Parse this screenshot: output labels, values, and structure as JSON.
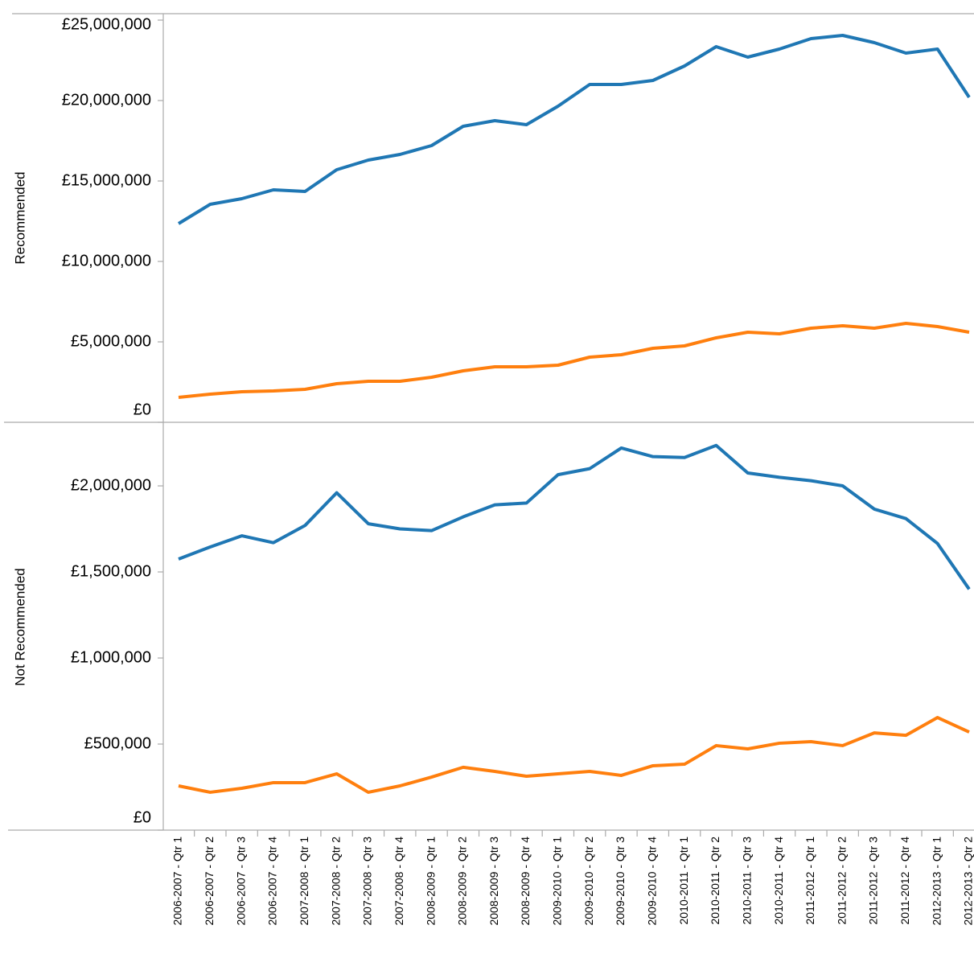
{
  "chart_data": [
    {
      "type": "line",
      "y_label": "Recommended",
      "ylim": [
        0,
        25400000
      ],
      "yticks": [
        {
          "value": 0,
          "label": "£0"
        },
        {
          "value": 5000000,
          "label": "£5,000,000"
        },
        {
          "value": 10000000,
          "label": "£10,000,000"
        },
        {
          "value": 15000000,
          "label": "£15,000,000"
        },
        {
          "value": 20000000,
          "label": "£20,000,000"
        },
        {
          "value": 25000000,
          "label": "£25,000,000"
        }
      ],
      "series": [
        {
          "color": "#1f77b4",
          "values": [
            12350000,
            13550000,
            13900000,
            14450000,
            14350000,
            15700000,
            16300000,
            16650000,
            17200000,
            18400000,
            18750000,
            18500000,
            19650000,
            21000000,
            21000000,
            21250000,
            22150000,
            23350000,
            22700000,
            23200000,
            23850000,
            24050000,
            23600000,
            22950000,
            23200000,
            20200000
          ]
        },
        {
          "color": "#ff7f0e",
          "values": [
            1550000,
            1750000,
            1900000,
            1950000,
            2050000,
            2400000,
            2550000,
            2550000,
            2800000,
            3200000,
            3450000,
            3450000,
            3550000,
            4050000,
            4200000,
            4600000,
            4750000,
            5250000,
            5600000,
            5500000,
            5850000,
            6000000,
            5850000,
            6150000,
            5950000,
            5600000
          ]
        }
      ]
    },
    {
      "type": "line",
      "y_label": "Not Recommended",
      "categories": [
        "2006-2007 - Qtr 1",
        "2006-2007 - Qtr 2",
        "2006-2007 - Qtr 3",
        "2006-2007 - Qtr 4",
        "2007-2008 - Qtr 1",
        "2007-2008 - Qtr 2",
        "2007-2008 - Qtr 3",
        "2007-2008 - Qtr 4",
        "2008-2009 - Qtr 1",
        "2008-2009 - Qtr 2",
        "2008-2009 - Qtr 3",
        "2008-2009 - Qtr 4",
        "2009-2010 - Qtr 1",
        "2009-2010 - Qtr 2",
        "2009-2010 - Qtr 3",
        "2009-2010 - Qtr 4",
        "2010-2011 - Qtr 1",
        "2010-2011 - Qtr 2",
        "2010-2011 - Qtr 3",
        "2010-2011 - Qtr 4",
        "2011-2012 - Qtr 1",
        "2011-2012 - Qtr 2",
        "2011-2012 - Qtr 3",
        "2011-2012 - Qtr 4",
        "2012-2013 - Qtr 1",
        "2012-2013 - Qtr 2"
      ],
      "ylim": [
        0,
        2360000
      ],
      "yticks": [
        {
          "value": 0,
          "label": "£0"
        },
        {
          "value": 500000,
          "label": "£500,000"
        },
        {
          "value": 1000000,
          "label": "£1,000,000"
        },
        {
          "value": 1500000,
          "label": "£1,500,000"
        },
        {
          "value": 2000000,
          "label": "£2,000,000"
        }
      ],
      "series": [
        {
          "color": "#1f77b4",
          "values": [
            1575000,
            1645000,
            1710000,
            1670000,
            1770000,
            1960000,
            1780000,
            1750000,
            1740000,
            1820000,
            1890000,
            1900000,
            2065000,
            2100000,
            2220000,
            2170000,
            2165000,
            2235000,
            2075000,
            2050000,
            2030000,
            2000000,
            1865000,
            1810000,
            1665000,
            1400000
          ]
        },
        {
          "color": "#ff7f0e",
          "values": [
            257000,
            220000,
            243000,
            276000,
            276000,
            327000,
            220000,
            257000,
            308000,
            365000,
            341000,
            313000,
            327000,
            341000,
            318000,
            374000,
            383000,
            491000,
            472000,
            505000,
            514000,
            491000,
            565000,
            551000,
            654000,
            570000
          ]
        }
      ]
    }
  ]
}
